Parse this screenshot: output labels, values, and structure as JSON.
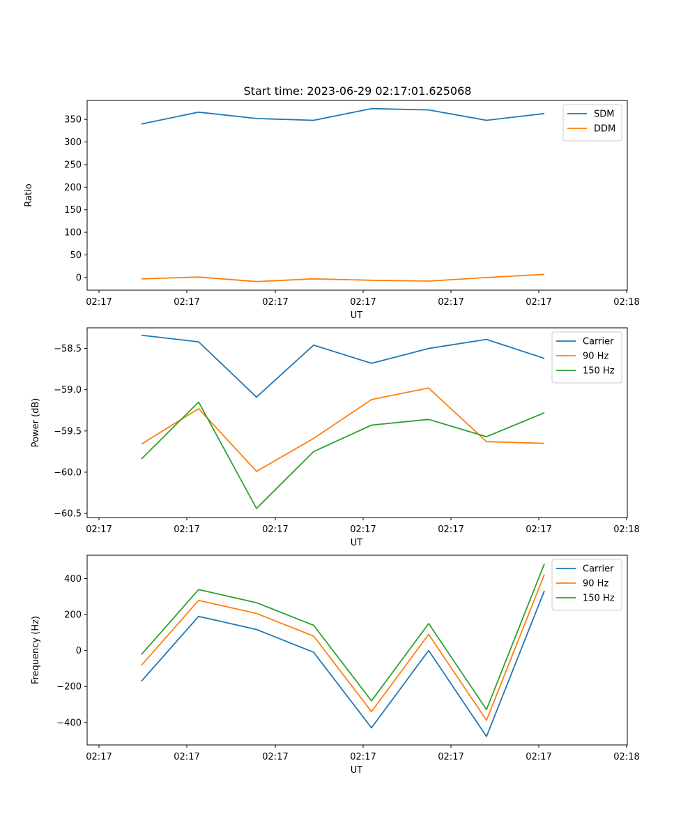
{
  "title": "Start time: 2023-06-29 02:17:01.625068",
  "chart_data": [
    {
      "type": "line",
      "ylabel": "Ratio",
      "xlabel": "UT",
      "x_ticks": [
        "02:17",
        "02:17",
        "02:17",
        "02:17",
        "02:17",
        "02:17",
        "02:18"
      ],
      "y_ticks": [
        "0",
        "50",
        "100",
        "150",
        "200",
        "250",
        "300",
        "350"
      ],
      "ylim": [
        -28,
        392
      ],
      "legend_position": "top-right",
      "grid": false,
      "series": [
        {
          "name": "SDM",
          "color": "#1f77b4",
          "values": [
            340,
            366,
            352,
            348,
            374,
            371,
            348,
            363
          ]
        },
        {
          "name": "DDM",
          "color": "#ff7f0e",
          "values": [
            -3,
            1,
            -9,
            -3,
            -6,
            -8,
            0,
            7
          ]
        }
      ]
    },
    {
      "type": "line",
      "ylabel": "Power (dB)",
      "xlabel": "UT",
      "x_ticks": [
        "02:17",
        "02:17",
        "02:17",
        "02:17",
        "02:17",
        "02:17",
        "02:18"
      ],
      "y_ticks": [
        "−60.5",
        "−60.0",
        "−59.5",
        "−59.0",
        "−58.5"
      ],
      "ylim": [
        -60.55,
        -58.25
      ],
      "legend_position": "top-right",
      "grid": false,
      "series": [
        {
          "name": "Carrier",
          "color": "#1f77b4",
          "values": [
            -58.34,
            -58.42,
            -59.09,
            -58.46,
            -58.68,
            -58.5,
            -58.39,
            -58.62
          ]
        },
        {
          "name": "90 Hz",
          "color": "#ff7f0e",
          "values": [
            -59.66,
            -59.23,
            -59.99,
            -59.59,
            -59.12,
            -58.98,
            -59.63,
            -59.65
          ]
        },
        {
          "name": "150 Hz",
          "color": "#2ca02c",
          "values": [
            -59.84,
            -59.15,
            -60.44,
            -59.75,
            -59.43,
            -59.36,
            -59.57,
            -59.28
          ]
        }
      ]
    },
    {
      "type": "line",
      "ylabel": "Frequency (Hz)",
      "xlabel": "UT",
      "x_ticks": [
        "02:17",
        "02:17",
        "02:17",
        "02:17",
        "02:17",
        "02:17",
        "02:18"
      ],
      "y_ticks": [
        "−400",
        "−200",
        "0",
        "200",
        "400"
      ],
      "ylim": [
        -525,
        530
      ],
      "legend_position": "top-right",
      "grid": false,
      "series": [
        {
          "name": "Carrier",
          "color": "#1f77b4",
          "values": [
            -170,
            190,
            117,
            -10,
            -430,
            0,
            -478,
            332
          ]
        },
        {
          "name": "90 Hz",
          "color": "#ff7f0e",
          "values": [
            -82,
            279,
            206,
            80,
            -340,
            90,
            -388,
            422
          ]
        },
        {
          "name": "150 Hz",
          "color": "#2ca02c",
          "values": [
            -22,
            339,
            266,
            140,
            -280,
            150,
            -328,
            482
          ]
        }
      ]
    }
  ]
}
